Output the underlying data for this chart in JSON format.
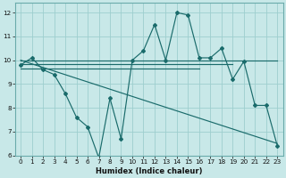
{
  "title": "",
  "xlabel": "Humidex (Indice chaleur)",
  "ylabel": "",
  "bg_color": "#c8e8e8",
  "grid_color": "#9ecece",
  "line_color": "#1a6b6b",
  "xlim": [
    -0.5,
    23.5
  ],
  "ylim": [
    6,
    12.4
  ],
  "yticks": [
    6,
    7,
    8,
    9,
    10,
    11,
    12
  ],
  "xticks": [
    0,
    1,
    2,
    3,
    4,
    5,
    6,
    7,
    8,
    9,
    10,
    11,
    12,
    13,
    14,
    15,
    16,
    17,
    18,
    19,
    20,
    21,
    22,
    23
  ],
  "line1_x": [
    0,
    1,
    2,
    3,
    4,
    5,
    6,
    7,
    8,
    9,
    10,
    11,
    12,
    13,
    14,
    15,
    16,
    17,
    18,
    19,
    20,
    21,
    22,
    23
  ],
  "line1_y": [
    9.8,
    10.1,
    9.6,
    9.4,
    8.6,
    7.6,
    7.2,
    5.9,
    8.4,
    6.7,
    10.0,
    10.4,
    11.5,
    10.0,
    12.0,
    11.9,
    10.1,
    10.1,
    10.5,
    9.2,
    9.95,
    8.1,
    8.1,
    6.4
  ],
  "line2_x": [
    0,
    23
  ],
  "line2_y": [
    10.0,
    6.5
  ],
  "line3_x": [
    0,
    23
  ],
  "line3_y": [
    10.0,
    10.0
  ],
  "line4_x": [
    0,
    19
  ],
  "line4_y": [
    9.85,
    9.85
  ],
  "line5_x": [
    0,
    16
  ],
  "line5_y": [
    9.65,
    9.65
  ]
}
